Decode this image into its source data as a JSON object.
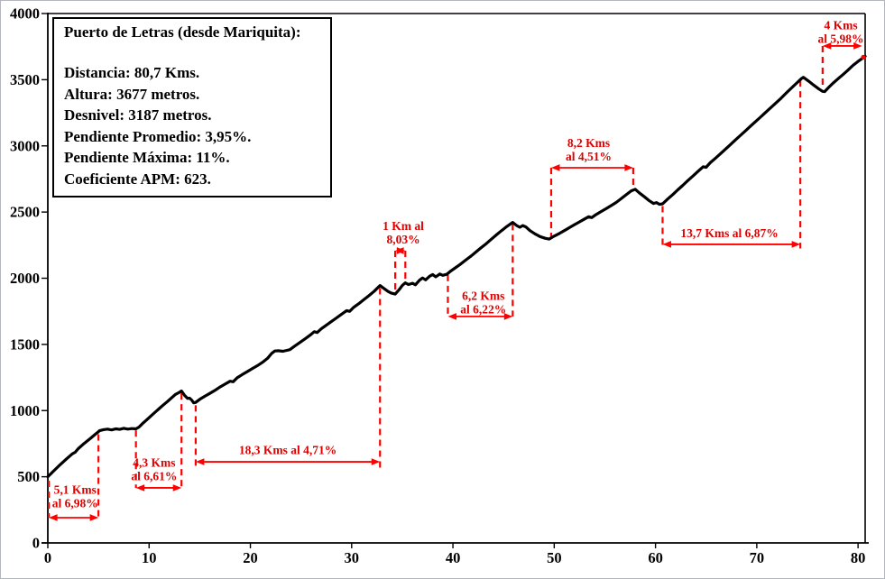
{
  "chart_data": {
    "type": "line",
    "title": "Puerto de Letras (desde Mariquita):",
    "info_lines": [
      "Distancia: 80,7 Kms.",
      "Altura: 3677 metros.",
      "Desnivel: 3187 metros.",
      "Pendiente Promedio: 3,95%.",
      "Pendiente Máxima: 11%.",
      "Coeficiente APM: 623."
    ],
    "xlabel": "",
    "ylabel": "",
    "xlim": [
      0,
      80.7
    ],
    "ylim": [
      0,
      4000
    ],
    "x_ticks": [
      0,
      10,
      20,
      30,
      40,
      50,
      60,
      70,
      80
    ],
    "y_ticks": [
      0,
      500,
      1000,
      1500,
      2000,
      2500,
      3000,
      3500,
      4000
    ],
    "grid": false,
    "legend": "none",
    "line_color": "#000000",
    "arrow_color": "#ff0000",
    "annotation_text_color": "#e00000",
    "profile_km_m": [
      [
        0,
        500
      ],
      [
        0.6,
        545
      ],
      [
        1.2,
        590
      ],
      [
        1.8,
        632
      ],
      [
        2.4,
        672
      ],
      [
        2.7,
        685
      ],
      [
        3.0,
        712
      ],
      [
        3.6,
        752
      ],
      [
        4.2,
        790
      ],
      [
        4.7,
        822
      ],
      [
        5.0,
        840
      ],
      [
        5.1,
        848
      ],
      [
        5.5,
        856
      ],
      [
        5.9,
        860
      ],
      [
        6.3,
        854
      ],
      [
        6.7,
        862
      ],
      [
        7.1,
        858
      ],
      [
        7.5,
        866
      ],
      [
        7.9,
        860
      ],
      [
        8.3,
        864
      ],
      [
        8.7,
        862
      ],
      [
        9.0,
        875
      ],
      [
        9.4,
        905
      ],
      [
        9.8,
        932
      ],
      [
        10.2,
        960
      ],
      [
        10.6,
        988
      ],
      [
        11.0,
        1015
      ],
      [
        11.4,
        1042
      ],
      [
        11.8,
        1068
      ],
      [
        12.2,
        1095
      ],
      [
        12.6,
        1122
      ],
      [
        13.0,
        1138
      ],
      [
        13.2,
        1148
      ],
      [
        13.5,
        1115
      ],
      [
        13.8,
        1092
      ],
      [
        14.0,
        1094
      ],
      [
        14.2,
        1080
      ],
      [
        14.4,
        1058
      ],
      [
        14.6,
        1062
      ],
      [
        15.0,
        1085
      ],
      [
        15.5,
        1108
      ],
      [
        16.0,
        1130
      ],
      [
        16.5,
        1152
      ],
      [
        17.0,
        1178
      ],
      [
        17.5,
        1200
      ],
      [
        18.0,
        1222
      ],
      [
        18.3,
        1218
      ],
      [
        18.7,
        1248
      ],
      [
        19.2,
        1272
      ],
      [
        19.7,
        1295
      ],
      [
        20.2,
        1318
      ],
      [
        20.7,
        1340
      ],
      [
        21.2,
        1365
      ],
      [
        21.7,
        1395
      ],
      [
        22.1,
        1432
      ],
      [
        22.4,
        1450
      ],
      [
        22.8,
        1452
      ],
      [
        23.2,
        1448
      ],
      [
        23.6,
        1455
      ],
      [
        23.9,
        1460
      ],
      [
        24.4,
        1488
      ],
      [
        24.9,
        1515
      ],
      [
        25.4,
        1542
      ],
      [
        25.9,
        1570
      ],
      [
        26.3,
        1596
      ],
      [
        26.6,
        1590
      ],
      [
        27.0,
        1618
      ],
      [
        27.5,
        1645
      ],
      [
        28.0,
        1672
      ],
      [
        28.5,
        1700
      ],
      [
        29.0,
        1728
      ],
      [
        29.5,
        1755
      ],
      [
        29.8,
        1750
      ],
      [
        30.2,
        1780
      ],
      [
        30.7,
        1808
      ],
      [
        31.2,
        1838
      ],
      [
        31.7,
        1868
      ],
      [
        32.2,
        1900
      ],
      [
        32.6,
        1930
      ],
      [
        32.8,
        1945
      ],
      [
        33.2,
        1922
      ],
      [
        33.6,
        1900
      ],
      [
        33.9,
        1888
      ],
      [
        34.3,
        1880
      ],
      [
        34.7,
        1915
      ],
      [
        35.0,
        1945
      ],
      [
        35.3,
        1965
      ],
      [
        35.6,
        1952
      ],
      [
        36.0,
        1962
      ],
      [
        36.3,
        1950
      ],
      [
        36.7,
        1985
      ],
      [
        37.0,
        2002
      ],
      [
        37.3,
        1988
      ],
      [
        37.7,
        2015
      ],
      [
        38.0,
        2028
      ],
      [
        38.3,
        2010
      ],
      [
        38.7,
        2032
      ],
      [
        39.0,
        2022
      ],
      [
        39.4,
        2030
      ],
      [
        39.8,
        2055
      ],
      [
        40.3,
        2082
      ],
      [
        40.8,
        2110
      ],
      [
        41.3,
        2140
      ],
      [
        41.8,
        2168
      ],
      [
        42.3,
        2200
      ],
      [
        42.8,
        2232
      ],
      [
        43.3,
        2262
      ],
      [
        43.8,
        2295
      ],
      [
        44.3,
        2328
      ],
      [
        44.8,
        2360
      ],
      [
        45.3,
        2390
      ],
      [
        45.9,
        2422
      ],
      [
        46.3,
        2398
      ],
      [
        46.6,
        2385
      ],
      [
        46.9,
        2398
      ],
      [
        47.2,
        2388
      ],
      [
        47.6,
        2360
      ],
      [
        48.1,
        2335
      ],
      [
        48.6,
        2315
      ],
      [
        49.1,
        2302
      ],
      [
        49.5,
        2296
      ],
      [
        50.0,
        2318
      ],
      [
        50.5,
        2338
      ],
      [
        51.0,
        2360
      ],
      [
        51.5,
        2382
      ],
      [
        52.0,
        2405
      ],
      [
        52.5,
        2426
      ],
      [
        53.0,
        2448
      ],
      [
        53.4,
        2465
      ],
      [
        53.7,
        2458
      ],
      [
        54.1,
        2480
      ],
      [
        54.6,
        2502
      ],
      [
        55.1,
        2525
      ],
      [
        55.6,
        2548
      ],
      [
        56.1,
        2572
      ],
      [
        56.6,
        2600
      ],
      [
        57.1,
        2630
      ],
      [
        57.6,
        2660
      ],
      [
        58.0,
        2672
      ],
      [
        58.4,
        2645
      ],
      [
        58.9,
        2615
      ],
      [
        59.4,
        2585
      ],
      [
        59.8,
        2565
      ],
      [
        60.1,
        2572
      ],
      [
        60.4,
        2558
      ],
      [
        60.7,
        2562
      ],
      [
        61.2,
        2598
      ],
      [
        61.7,
        2632
      ],
      [
        62.2,
        2668
      ],
      [
        62.7,
        2702
      ],
      [
        63.2,
        2738
      ],
      [
        63.7,
        2772
      ],
      [
        64.2,
        2808
      ],
      [
        64.7,
        2842
      ],
      [
        65.0,
        2838
      ],
      [
        65.4,
        2872
      ],
      [
        65.9,
        2905
      ],
      [
        66.4,
        2940
      ],
      [
        66.9,
        2975
      ],
      [
        67.4,
        3010
      ],
      [
        67.9,
        3045
      ],
      [
        68.4,
        3080
      ],
      [
        68.9,
        3115
      ],
      [
        69.4,
        3150
      ],
      [
        69.9,
        3185
      ],
      [
        70.4,
        3220
      ],
      [
        70.9,
        3255
      ],
      [
        71.4,
        3290
      ],
      [
        71.9,
        3325
      ],
      [
        72.4,
        3360
      ],
      [
        72.9,
        3398
      ],
      [
        73.4,
        3435
      ],
      [
        73.9,
        3472
      ],
      [
        74.4,
        3508
      ],
      [
        74.6,
        3518
      ],
      [
        75.1,
        3490
      ],
      [
        75.6,
        3460
      ],
      [
        76.1,
        3432
      ],
      [
        76.5,
        3412
      ],
      [
        76.7,
        3410
      ],
      [
        77.1,
        3442
      ],
      [
        77.5,
        3472
      ],
      [
        78.0,
        3505
      ],
      [
        78.5,
        3538
      ],
      [
        79.0,
        3572
      ],
      [
        79.5,
        3608
      ],
      [
        80.0,
        3638
      ],
      [
        80.4,
        3660
      ],
      [
        80.7,
        3677
      ]
    ],
    "segments": [
      {
        "label": [
          "5,1 Kms",
          "al 6,98%"
        ],
        "text_km": 2.7,
        "text_m": 370,
        "arrow": {
          "km1": 0.1,
          "km2": 5.0,
          "m": 191
        },
        "dashes": [
          {
            "km": 0.1,
            "m1": 470,
            "m2": 191
          },
          {
            "km": 5.0,
            "m1": 820,
            "m2": 191
          }
        ]
      },
      {
        "label": [
          "4,3 Kms",
          "al 6,61%"
        ],
        "text_km": 10.5,
        "text_m": 575,
        "arrow": {
          "km1": 8.7,
          "km2": 13.2,
          "m": 416
        },
        "dashes": [
          {
            "km": 8.7,
            "m1": 850,
            "m2": 416
          },
          {
            "km": 13.2,
            "m1": 1130,
            "m2": 416
          }
        ]
      },
      {
        "label": [
          "18,3 Kms al 4,71%"
        ],
        "text_km": 23.7,
        "text_m": 670,
        "arrow": {
          "km1": 14.6,
          "km2": 32.8,
          "m": 613
        },
        "dashes": [
          {
            "km": 14.6,
            "m1": 1040,
            "m2": 565
          },
          {
            "km": 32.8,
            "m1": 1925,
            "m2": 565
          }
        ]
      },
      {
        "label": [
          "1 Km al",
          "8,03%"
        ],
        "text_km": 35.1,
        "text_m": 2365,
        "arrow": {
          "km1": 34.3,
          "km2": 35.3,
          "m": 2208
        },
        "dashes": [
          {
            "km": 34.3,
            "m1": 2208,
            "m2": 1895
          },
          {
            "km": 35.3,
            "m1": 2208,
            "m2": 1975
          }
        ]
      },
      {
        "label": [
          "6,2 Kms",
          "al 6,22%"
        ],
        "text_km": 43.0,
        "text_m": 1835,
        "arrow": {
          "km1": 39.5,
          "km2": 45.9,
          "m": 1711
        },
        "dashes": [
          {
            "km": 39.5,
            "m1": 2025,
            "m2": 1711
          },
          {
            "km": 45.9,
            "m1": 2410,
            "m2": 1711
          }
        ]
      },
      {
        "label": [
          "8,2 Kms",
          "al 4,51%"
        ],
        "text_km": 53.4,
        "text_m": 2990,
        "arrow": {
          "km1": 49.7,
          "km2": 57.8,
          "m": 2835
        },
        "dashes": [
          {
            "km": 49.7,
            "m1": 2835,
            "m2": 2310
          },
          {
            "km": 57.8,
            "m1": 2835,
            "m2": 2680
          }
        ]
      },
      {
        "label": [
          "13,7 Kms al 6,87%"
        ],
        "text_km": 67.3,
        "text_m": 2310,
        "arrow": {
          "km1": 60.7,
          "km2": 74.3,
          "m": 2256
        },
        "dashes": [
          {
            "km": 60.7,
            "m1": 2545,
            "m2": 2225
          },
          {
            "km": 74.3,
            "m1": 3495,
            "m2": 2225
          }
        ]
      },
      {
        "label": [
          "4 Kms",
          "al 5,98%"
        ],
        "text_km": 78.3,
        "text_m": 3880,
        "arrow": {
          "km1": 76.5,
          "km2": 80.4,
          "m": 3755
        },
        "dashes": [
          {
            "km": 76.5,
            "m1": 3755,
            "m2": 3430
          }
        ]
      }
    ]
  }
}
